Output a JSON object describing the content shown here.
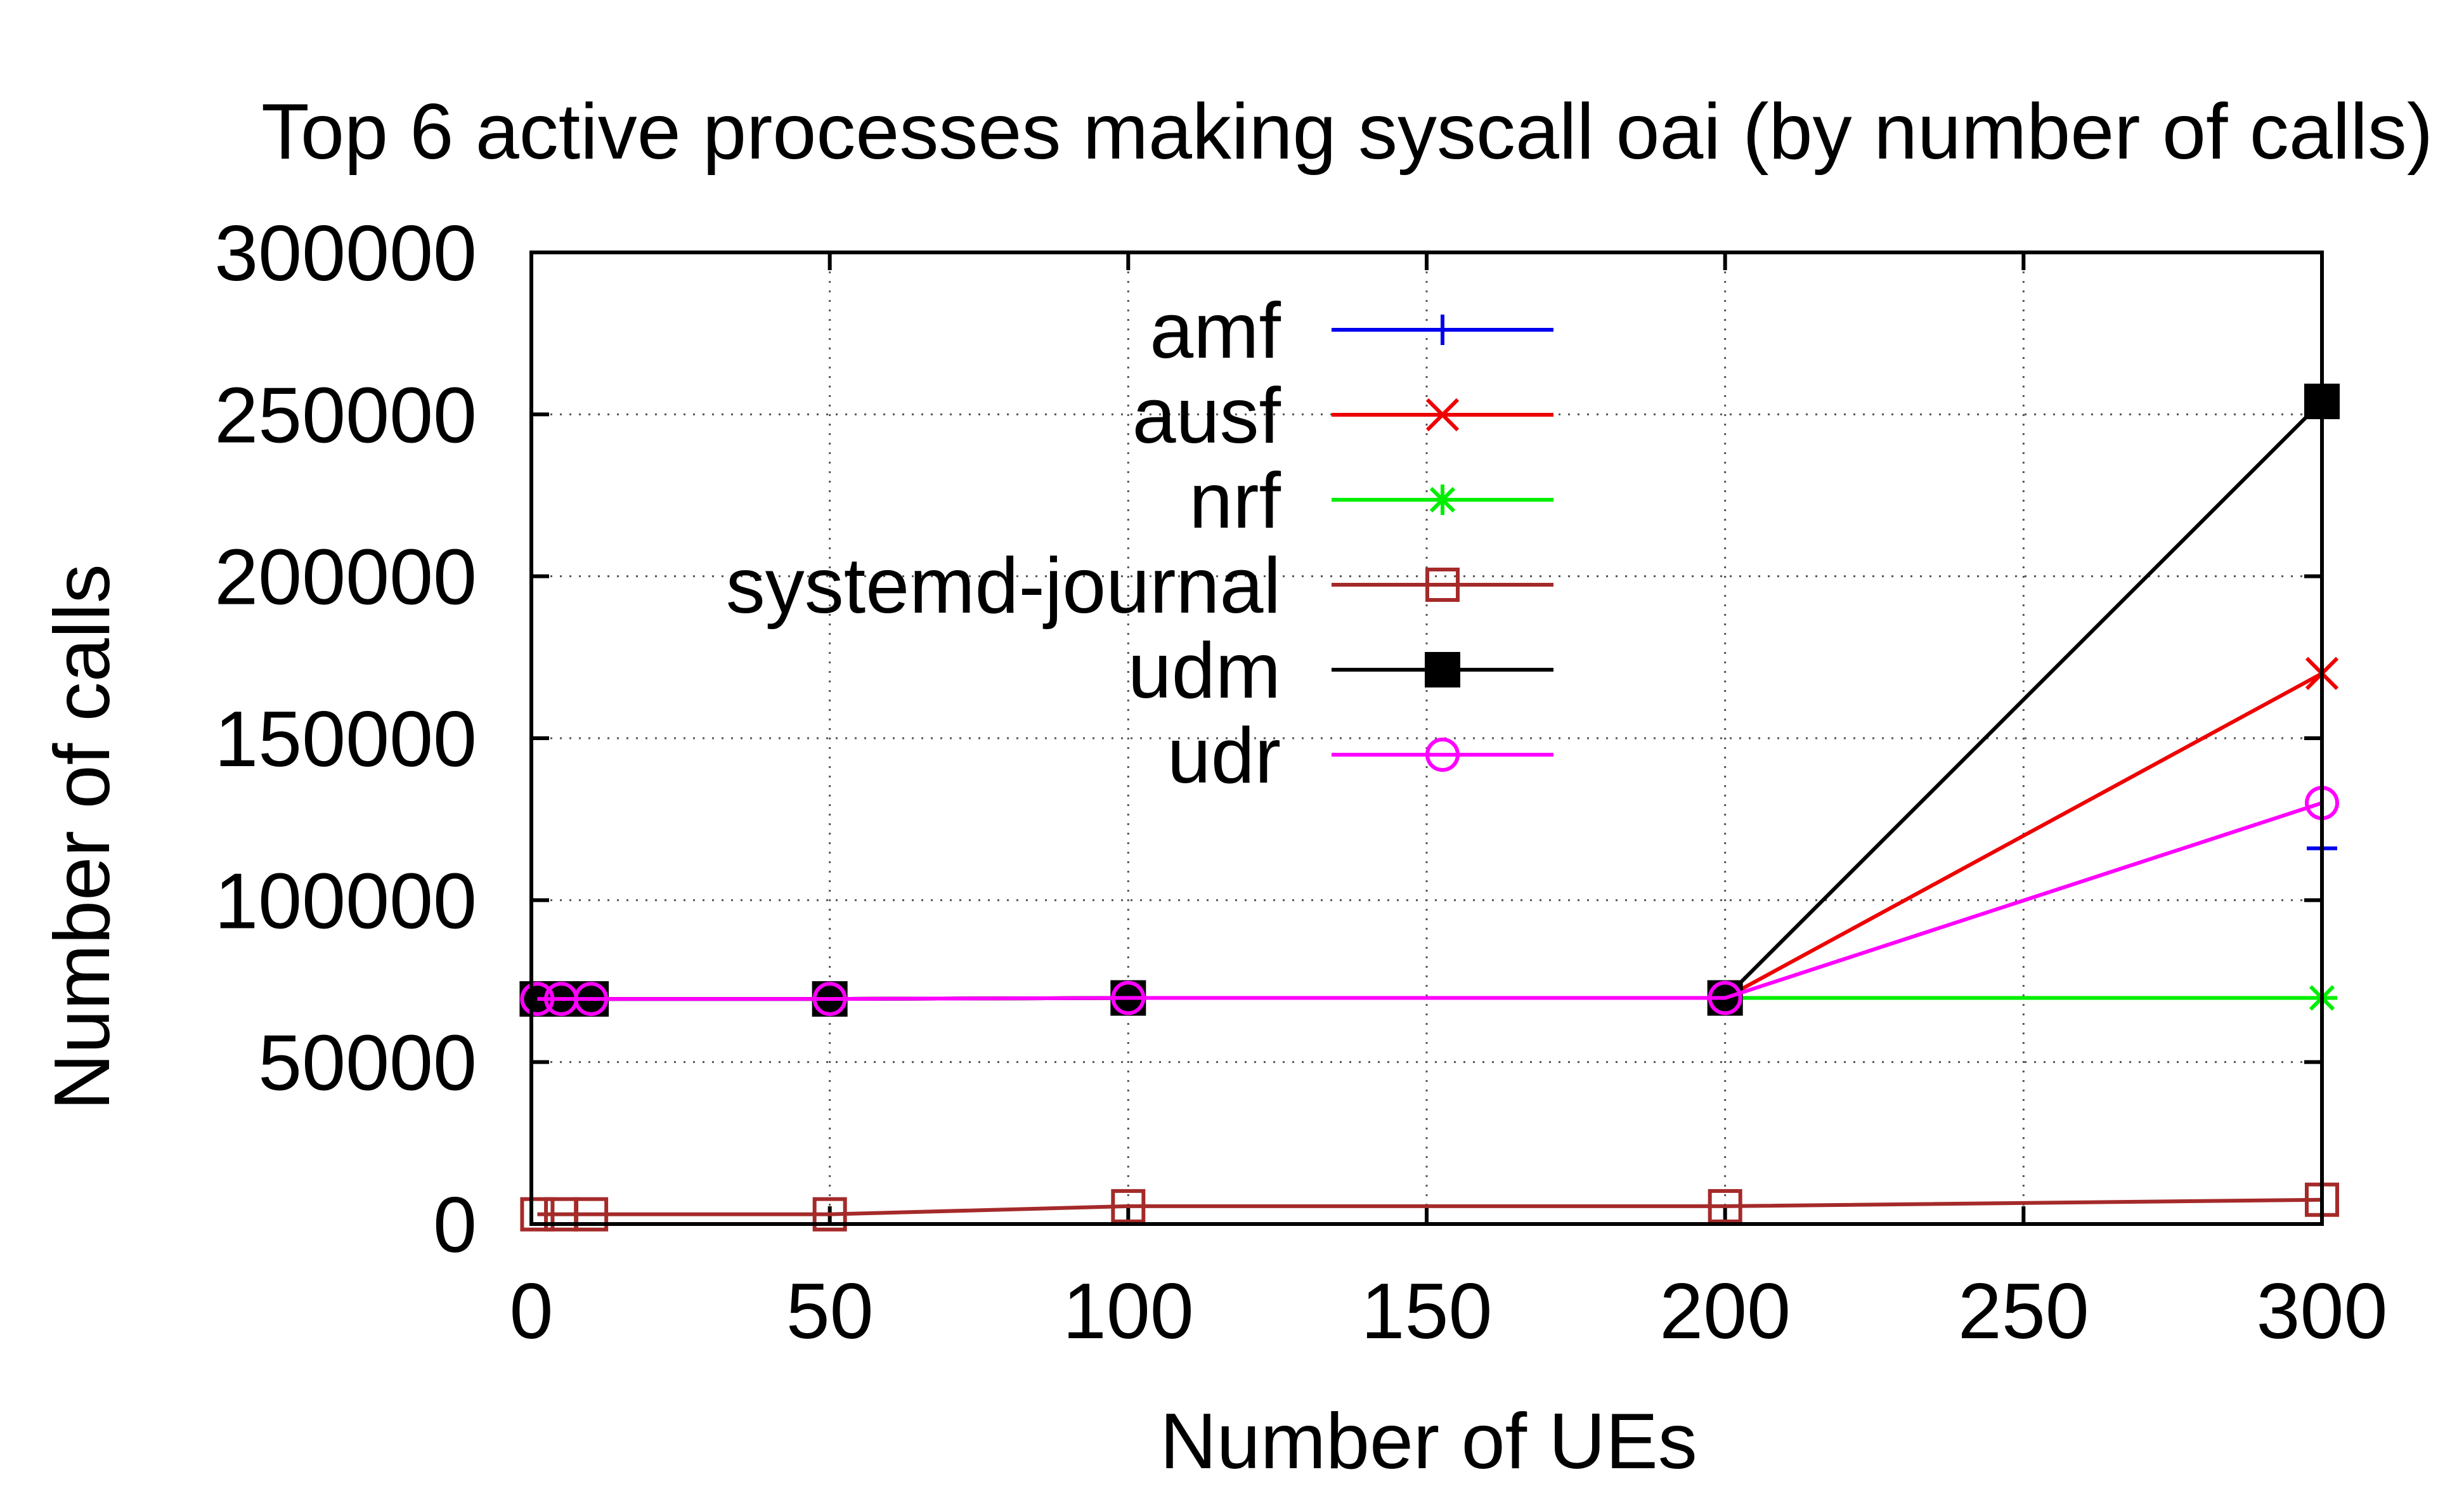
{
  "chart_data": {
    "type": "line",
    "title": "Top 6 active processes making syscall oai (by number of calls)",
    "xlabel": "Number of UEs",
    "ylabel": "Number of calls",
    "xlim": [
      0,
      300
    ],
    "ylim": [
      0,
      300000
    ],
    "xticks": [
      "0",
      "50",
      "100",
      "150",
      "200",
      "250",
      "300"
    ],
    "yticks": [
      "0",
      "50000",
      "100000",
      "150000",
      "200000",
      "250000",
      "300000"
    ],
    "grid": true,
    "legend_position": "top-center",
    "x": [
      1,
      5,
      10,
      50,
      100,
      200,
      300
    ],
    "series": [
      {
        "name": "amf",
        "color": "#0000ee",
        "marker": "plus",
        "values": [
          69500,
          69500,
          69500,
          69500,
          69800,
          69800,
          116000
        ]
      },
      {
        "name": "ausf",
        "color": "#ee0000",
        "marker": "cross",
        "values": [
          69500,
          69500,
          69500,
          69500,
          69800,
          69800,
          170000
        ]
      },
      {
        "name": "nrf",
        "color": "#00ee00",
        "marker": "star",
        "values": [
          69500,
          69500,
          69500,
          69500,
          69800,
          69800,
          69800
        ]
      },
      {
        "name": "systemd-journal",
        "color": "#a52a2a",
        "marker": "square-open",
        "values": [
          3000,
          3000,
          3000,
          3000,
          5500,
          5500,
          7500
        ]
      },
      {
        "name": "udm",
        "color": "#000000",
        "marker": "square-filled",
        "values": [
          69500,
          69500,
          69500,
          69500,
          69800,
          69800,
          254000
        ]
      },
      {
        "name": "udr",
        "color": "#ff00ff",
        "marker": "circle-open",
        "values": [
          69500,
          69500,
          69500,
          69500,
          69800,
          69800,
          130000
        ]
      }
    ]
  }
}
